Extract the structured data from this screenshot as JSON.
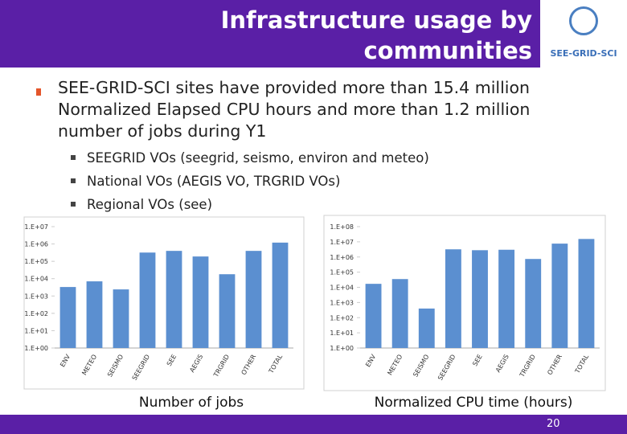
{
  "header": {
    "title_lines": [
      "Infrastructure usage by",
      "communities"
    ],
    "logo_text": "SEE-GRID-SCI"
  },
  "body": {
    "bullet": "SEE-GRID-SCI sites have provided more than 15.4 million Normalized Elapsed CPU hours and more than 1.2 million number of jobs during Y1",
    "sub_bullets": [
      "SEEGRID VOs (seegrid, seismo, environ and meteo)",
      "National VOs (AEGIS VO, TRGRID VOs)",
      "Regional VOs (see)"
    ]
  },
  "chart_data": [
    {
      "type": "bar",
      "caption": "Number of jobs",
      "categories": [
        "ENV",
        "METEO",
        "SEISMO",
        "SEEGRID",
        "SEE",
        "AEGIS",
        "TRGRID",
        "OTHER",
        "TOTAL"
      ],
      "values": [
        3300,
        7000,
        2400,
        320000,
        400000,
        190000,
        18000,
        400000,
        1200000
      ],
      "color": "#5b8fd0",
      "log_scale": true,
      "grid": false,
      "ylim": [
        1,
        10000000
      ],
      "yticks": [
        {
          "value": 1,
          "label": "1.E+00"
        },
        {
          "value": 10,
          "label": "1.E+01"
        },
        {
          "value": 100,
          "label": "1.E+02"
        },
        {
          "value": 1000,
          "label": "1.E+03"
        },
        {
          "value": 10000,
          "label": "1.E+04"
        },
        {
          "value": 100000,
          "label": "1.E+05"
        },
        {
          "value": 1000000,
          "label": "1.E+06"
        },
        {
          "value": 10000000,
          "label": "1.E+07"
        }
      ]
    },
    {
      "type": "bar",
      "caption": "Normalized CPU time (hours)",
      "categories": [
        "ENV",
        "METEO",
        "SEISMO",
        "SEEGRID",
        "SEE",
        "AEGIS",
        "TRGRID",
        "OTHER",
        "TOTAL"
      ],
      "values": [
        17000,
        35000,
        400,
        3200000,
        2800000,
        3000000,
        740000,
        7600000,
        15400000
      ],
      "color": "#5b8fd0",
      "log_scale": true,
      "grid": false,
      "ylim": [
        1,
        100000000
      ],
      "yticks": [
        {
          "value": 1,
          "label": "1.E+00"
        },
        {
          "value": 10,
          "label": "1.E+01"
        },
        {
          "value": 100,
          "label": "1.E+02"
        },
        {
          "value": 1000,
          "label": "1.E+03"
        },
        {
          "value": 10000,
          "label": "1.E+04"
        },
        {
          "value": 100000,
          "label": "1.E+05"
        },
        {
          "value": 1000000,
          "label": "1.E+06"
        },
        {
          "value": 10000000,
          "label": "1.E+07"
        },
        {
          "value": 100000000,
          "label": "1.E+08"
        }
      ]
    }
  ],
  "footer": {
    "page_number": "20"
  }
}
